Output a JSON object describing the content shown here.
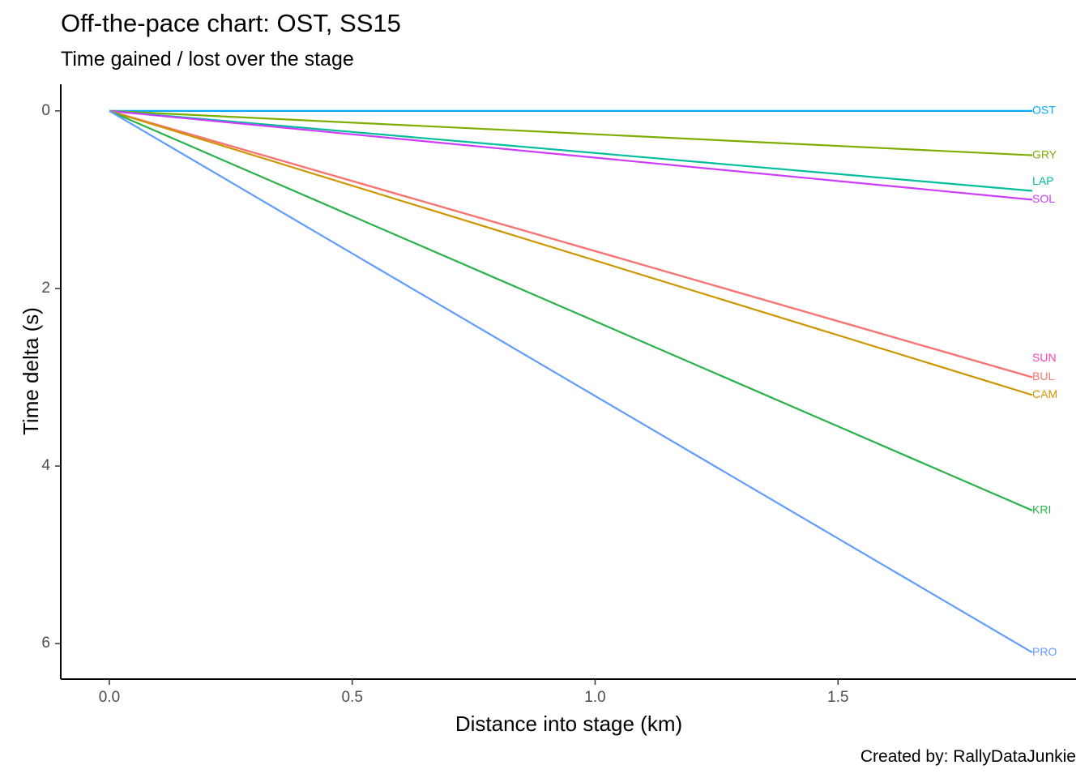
{
  "chart_data": {
    "type": "line",
    "title": "Off-the-pace chart: OST, SS15",
    "subtitle": "Time gained / lost over the stage",
    "xlabel": "Distance into stage (km)",
    "ylabel": "Time delta (s)",
    "caption": "Created by: RallyDataJunkie",
    "xlim": [
      -0.1,
      1.99
    ],
    "ylim": [
      -0.3,
      6.4
    ],
    "y_reversed": true,
    "x_ticks": [
      0.0,
      0.5,
      1.0,
      1.5
    ],
    "x_tick_labels": [
      "0.0",
      "0.5",
      "1.0",
      "1.5"
    ],
    "y_ticks": [
      0,
      2,
      4,
      6
    ],
    "y_tick_labels": [
      "0",
      "2",
      "4",
      "6"
    ],
    "grid": false,
    "legend": "none; series labelled at line ends",
    "series": [
      {
        "name": "OST",
        "color": "#00a9ff",
        "x": [
          0,
          1.9
        ],
        "y": [
          0,
          0
        ],
        "label_offset": 0
      },
      {
        "name": "GRY",
        "color": "#7cae00",
        "x": [
          0,
          1.9
        ],
        "y": [
          0,
          0.5
        ],
        "label_offset": 0
      },
      {
        "name": "LAP",
        "color": "#00be9c",
        "x": [
          0,
          1.9
        ],
        "y": [
          0,
          0.9
        ],
        "label_offset": -11
      },
      {
        "name": "SOL",
        "color": "#cd3cfc",
        "x": [
          0,
          1.9
        ],
        "y": [
          0,
          1.0
        ],
        "label_offset": 0
      },
      {
        "name": "SUN",
        "color": "#ff3fb8",
        "x": [
          0,
          1.9
        ],
        "y": [
          0,
          3.0
        ],
        "label_offset": -23
      },
      {
        "name": "BUL",
        "color": "#f8766d",
        "x": [
          0,
          1.9
        ],
        "y": [
          0,
          3.0
        ],
        "label_offset": 0
      },
      {
        "name": "CAM",
        "color": "#cd9600",
        "x": [
          0,
          1.9
        ],
        "y": [
          0,
          3.2
        ],
        "label_offset": 0
      },
      {
        "name": "KRI",
        "color": "#2ab24a",
        "x": [
          0,
          1.9
        ],
        "y": [
          0,
          4.5
        ],
        "label_offset": 0
      },
      {
        "name": "PRO",
        "color": "#619cff",
        "x": [
          0,
          1.9
        ],
        "y": [
          0,
          6.1
        ],
        "label_offset": 0
      }
    ]
  }
}
